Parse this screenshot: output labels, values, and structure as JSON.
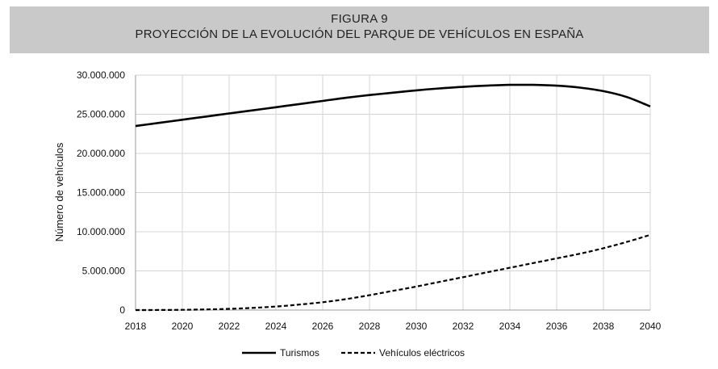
{
  "header": {
    "figure_label": "FIGURA 9",
    "title": "PROYECCIÓN DE LA EVOLUCIÓN DEL PARQUE DE VEHÍCULOS EN ESPAÑA"
  },
  "chart_data": {
    "type": "line",
    "title": "PROYECCIÓN DE LA EVOLUCIÓN DEL PARQUE DE VEHÍCULOS EN ESPAÑA",
    "xlabel": "",
    "ylabel": "Número de vehículos",
    "xlim": [
      2018,
      2040
    ],
    "ylim": [
      0,
      30000000
    ],
    "x_ticks": [
      "2018",
      "2020",
      "2022",
      "2024",
      "2026",
      "2028",
      "2030",
      "2032",
      "2034",
      "2036",
      "2038",
      "2040"
    ],
    "y_ticks": [
      "0",
      "5.000.000",
      "10.000.000",
      "15.000.000",
      "20.000.000",
      "25.000.000",
      "30.000.000"
    ],
    "grid": true,
    "legend_position": "bottom",
    "x": [
      2018,
      2019,
      2020,
      2021,
      2022,
      2023,
      2024,
      2025,
      2026,
      2027,
      2028,
      2029,
      2030,
      2031,
      2032,
      2033,
      2034,
      2035,
      2036,
      2037,
      2038,
      2039,
      2040
    ],
    "series": [
      {
        "name": "Turismos",
        "style": "solid",
        "values": [
          23500000,
          23900000,
          24300000,
          24700000,
          25100000,
          25500000,
          25900000,
          26300000,
          26700000,
          27100000,
          27450000,
          27750000,
          28050000,
          28300000,
          28500000,
          28650000,
          28750000,
          28750000,
          28650000,
          28400000,
          27950000,
          27200000,
          26000000
        ]
      },
      {
        "name": "Vehículos eléctricos",
        "style": "dashed",
        "values": [
          0,
          10000,
          30000,
          80000,
          150000,
          280000,
          450000,
          700000,
          1000000,
          1400000,
          1900000,
          2450000,
          3000000,
          3600000,
          4200000,
          4800000,
          5400000,
          6000000,
          6600000,
          7200000,
          7900000,
          8700000,
          9600000
        ]
      }
    ]
  }
}
